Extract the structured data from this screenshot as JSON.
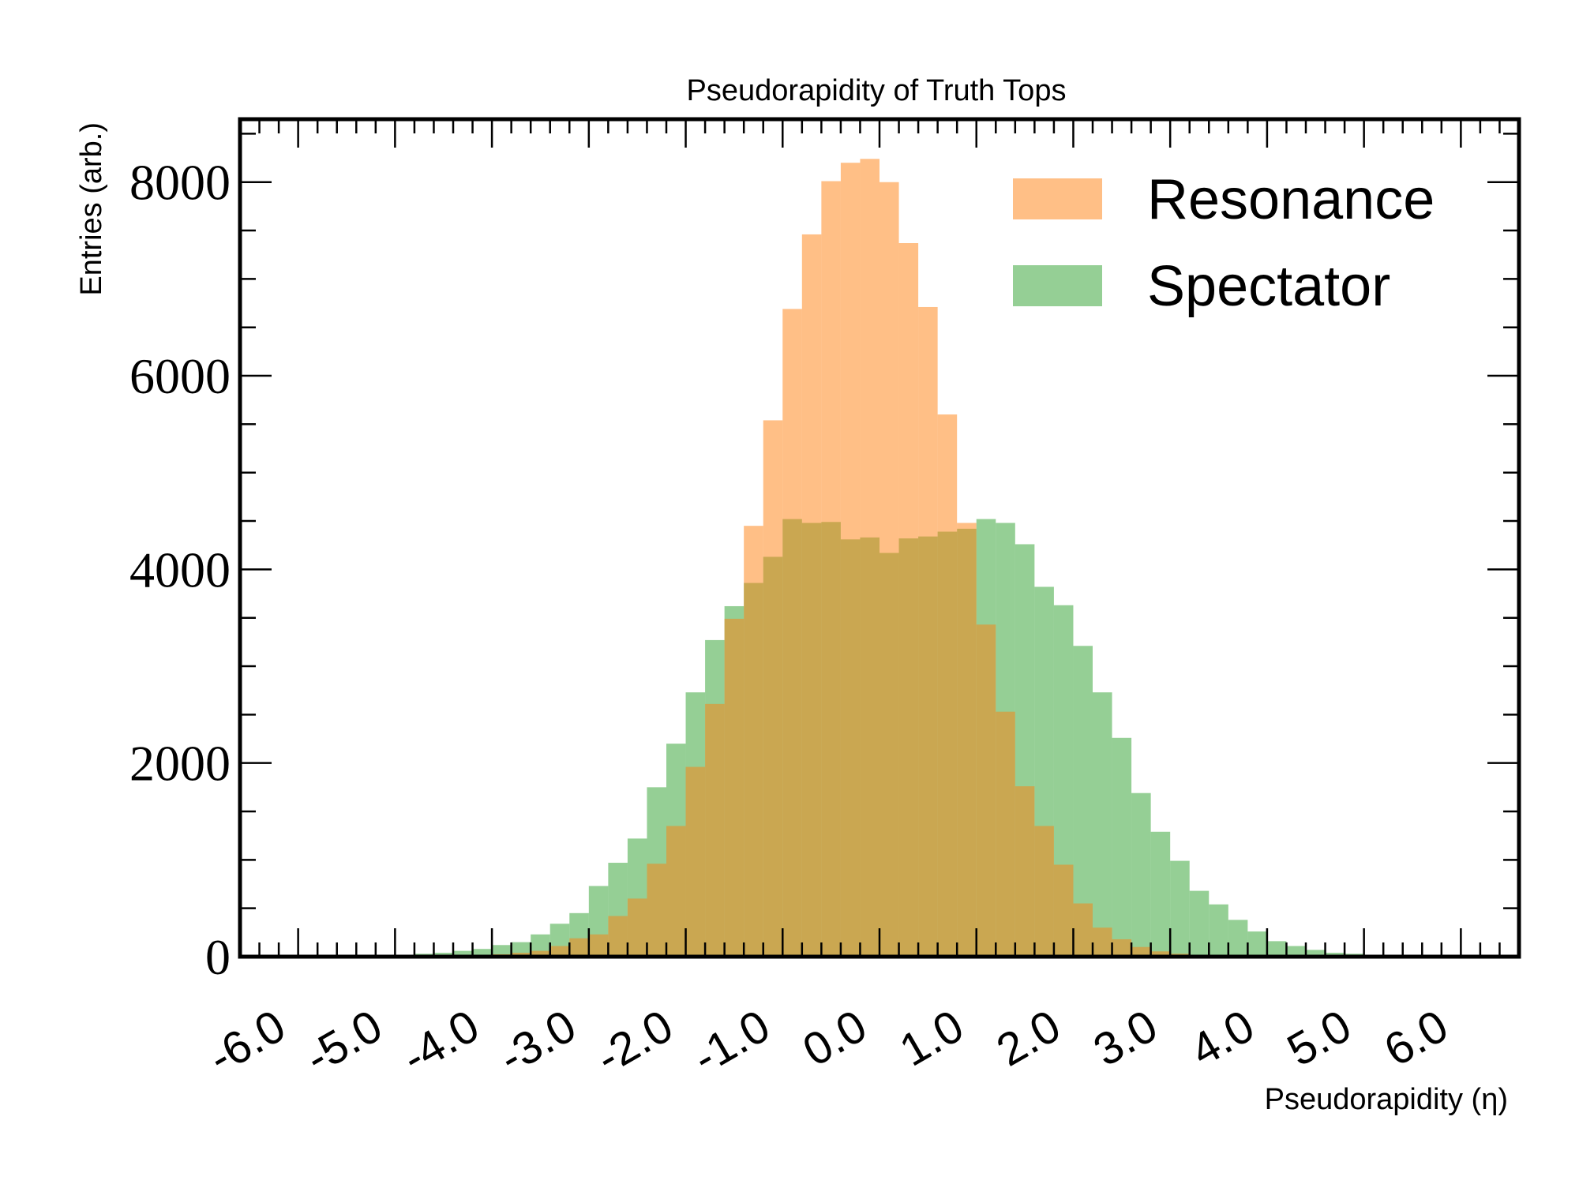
{
  "chart_data": {
    "type": "bar",
    "title": "Pseudorapidity of Truth Tops",
    "xlabel": "Pseudorapidity (η)",
    "ylabel": "Entries (arb.)",
    "xlim": [
      -6.6,
      6.6
    ],
    "ylim": [
      0,
      8650
    ],
    "x_ticks": [
      -6,
      -5,
      -4,
      -3,
      -2,
      -1,
      0,
      1,
      2,
      3,
      4,
      5,
      6
    ],
    "x_tick_labels": [
      "-6.0",
      "-5.0",
      "-4.0",
      "-3.0",
      "-2.0",
      "-1.0",
      "0.0",
      "1.0",
      "2.0",
      "3.0",
      "4.0",
      "5.0",
      "6.0"
    ],
    "y_ticks": [
      0,
      2000,
      4000,
      6000,
      8000
    ],
    "y_tick_labels": [
      "0",
      "2000",
      "4000",
      "6000",
      "8000"
    ],
    "legend_position": "top-right",
    "bin_start": -4.8,
    "bin_width": 0.2,
    "series": [
      {
        "name": "Spectator",
        "color": "#2ca02c",
        "opacity": 0.5,
        "values": [
          30,
          40,
          60,
          80,
          120,
          150,
          230,
          340,
          450,
          730,
          970,
          1220,
          1750,
          2200,
          2730,
          3270,
          3620,
          3860,
          4130,
          4520,
          4480,
          4490,
          4310,
          4330,
          4170,
          4320,
          4340,
          4390,
          4420,
          4520,
          4480,
          4260,
          3820,
          3630,
          3210,
          2730,
          2260,
          1690,
          1290,
          990,
          680,
          540,
          380,
          260,
          160,
          110,
          70,
          40,
          30,
          20
        ]
      },
      {
        "name": "Resonance",
        "color": "#ff7f0e",
        "opacity": 0.5,
        "values": [
          0,
          5,
          10,
          15,
          25,
          40,
          60,
          110,
          190,
          230,
          420,
          600,
          960,
          1350,
          1960,
          2610,
          3490,
          4450,
          5540,
          6690,
          7460,
          8010,
          8200,
          8240,
          8000,
          7370,
          6710,
          5600,
          4480,
          3430,
          2530,
          1760,
          1350,
          950,
          550,
          300,
          180,
          100,
          55,
          30,
          15,
          8,
          5,
          3,
          2,
          1,
          0,
          0,
          0,
          0
        ]
      }
    ]
  }
}
